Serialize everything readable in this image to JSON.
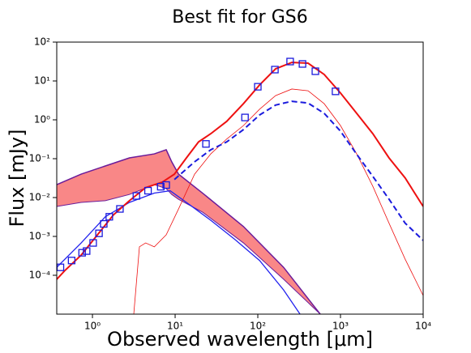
{
  "chart_data": {
    "type": "line",
    "title": "Best fit for GS6",
    "xlabel": "Observed wavelength [μm]",
    "ylabel": "Flux [mJy]",
    "xscale": "log",
    "yscale": "log",
    "xlim": [
      0.37,
      10000
    ],
    "ylim": [
      1e-05,
      100
    ],
    "xticks": [
      {
        "value": 1,
        "label": "10⁰"
      },
      {
        "value": 10,
        "label": "10¹"
      },
      {
        "value": 100,
        "label": "10²"
      },
      {
        "value": 1000,
        "label": "10³"
      },
      {
        "value": 10000,
        "label": "10⁴"
      }
    ],
    "yticks": [
      {
        "value": 0.0001,
        "label": "10⁻⁴"
      },
      {
        "value": 0.001,
        "label": "10⁻³"
      },
      {
        "value": 0.01,
        "label": "10⁻²"
      },
      {
        "value": 0.1,
        "label": "10⁻¹"
      },
      {
        "value": 1,
        "label": "10⁰"
      },
      {
        "value": 10,
        "label": "10¹"
      },
      {
        "value": 100,
        "label": "10²"
      }
    ],
    "bands": [
      {
        "color": "#f87a7a",
        "edgecolor": "#6a1b9a",
        "x": [
          0.37,
          0.73,
          1.43,
          2.8,
          5.6,
          7.8,
          9.1,
          11,
          21.5,
          67,
          205,
          569
        ],
        "upper": [
          0.0215,
          0.04,
          0.065,
          0.105,
          0.133,
          0.17,
          0.083,
          0.04,
          0.013,
          0.0018,
          0.00016,
          1e-05
        ],
        "lower": [
          0.0059,
          0.0075,
          0.0083,
          0.012,
          0.0215,
          0.017,
          0.012,
          0.009,
          0.0042,
          0.00068,
          7.9e-05,
          1e-05
        ]
      }
    ],
    "series": [
      {
        "color": "#ee1111",
        "linestyle": "solid",
        "linewidth": 0.8,
        "x": [
          3.16,
          3.7,
          4.4,
          5.6,
          7.8,
          11,
          17.2,
          27,
          42,
          67,
          105,
          164,
          258,
          405,
          635,
          1000,
          1570,
          2460,
          3860,
          6050,
          10000
        ],
        "values": [
          1e-05,
          0.00054,
          0.00068,
          0.00054,
          0.0011,
          0.0051,
          0.04,
          0.133,
          0.32,
          0.71,
          1.87,
          4.2,
          6.2,
          5.6,
          2.6,
          0.71,
          0.133,
          0.0195,
          0.0022,
          0.00026,
          3e-05
        ]
      },
      {
        "color": "#2222ee",
        "linestyle": "solid",
        "linewidth": 1.3,
        "x": [
          0.37,
          0.73,
          1.43,
          2.8,
          5.6,
          8.7,
          13.7,
          27,
          53,
          105,
          205,
          324
        ],
        "values": [
          0.00016,
          0.00068,
          0.0032,
          0.0075,
          0.013,
          0.015,
          0.0075,
          0.0026,
          0.00083,
          0.00024,
          4.2e-05,
          1e-05
        ]
      },
      {
        "color": "#1a1add",
        "linestyle": "dashed",
        "linewidth": 2,
        "x": [
          9.8,
          17.2,
          27,
          42,
          67,
          105,
          164,
          258,
          405,
          635,
          1000,
          1570,
          2460,
          3860,
          6050,
          10000
        ],
        "values": [
          0.029,
          0.083,
          0.17,
          0.27,
          0.56,
          1.33,
          2.4,
          3.0,
          2.7,
          1.47,
          0.51,
          0.13,
          0.035,
          0.0091,
          0.0022,
          0.00079
        ]
      },
      {
        "color": "#ee1111",
        "linestyle": "solid",
        "linewidth": 2,
        "x": [
          0.37,
          0.46,
          0.73,
          1.15,
          1.8,
          2.8,
          4.4,
          7.0,
          9.8,
          13.7,
          19.2,
          27,
          42,
          67,
          105,
          164,
          258,
          405,
          635,
          1000,
          1570,
          2460,
          3860,
          6050,
          10000
        ],
        "values": [
          7.9e-05,
          0.00013,
          0.00033,
          0.0011,
          0.0036,
          0.0083,
          0.018,
          0.025,
          0.04,
          0.105,
          0.27,
          0.44,
          0.91,
          2.6,
          7.9,
          20.5,
          30,
          28.7,
          14.7,
          4.9,
          1.47,
          0.44,
          0.105,
          0.032,
          0.0059
        ]
      }
    ],
    "observations": {
      "color": "#1a1add",
      "x": [
        0.41,
        0.56,
        0.75,
        0.85,
        1.02,
        1.2,
        1.37,
        1.6,
        2.15,
        3.4,
        4.7,
        6.7,
        7.8,
        23.6,
        70,
        100,
        161,
        246,
        347,
        497,
        871
      ],
      "values": [
        0.00016,
        0.00024,
        0.00038,
        0.00042,
        0.00068,
        0.0012,
        0.0021,
        0.0032,
        0.0051,
        0.011,
        0.015,
        0.019,
        0.021,
        0.24,
        1.15,
        7.1,
        19.6,
        31.6,
        27.4,
        17.8,
        5.4
      ]
    }
  }
}
